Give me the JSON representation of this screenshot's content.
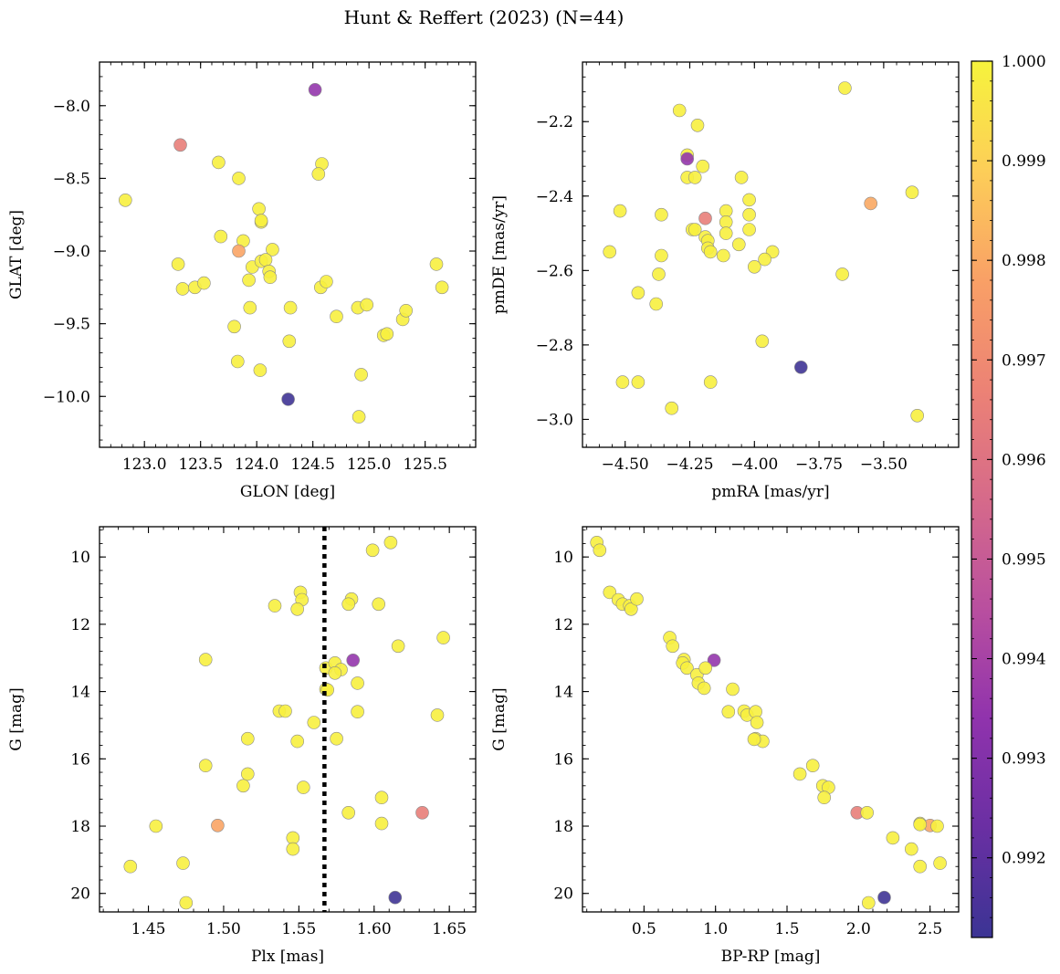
{
  "figure": {
    "title": "Hunt & Reffert (2023) (N=44)"
  },
  "colorbar": {
    "colormap": "plasma",
    "vmin": 0.9912,
    "vmax": 1.0,
    "ticks": [
      0.992,
      0.993,
      0.994,
      0.995,
      0.996,
      0.997,
      0.998,
      0.999,
      1.0
    ],
    "tick_labels": [
      "0.992",
      "0.993",
      "0.994",
      "0.995",
      "0.996",
      "0.997",
      "0.998",
      "0.999",
      "1.000"
    ]
  },
  "chart_data": [
    {
      "type": "scatter",
      "panel": "top-left",
      "xlabel": "GLON [deg]",
      "ylabel": "GLAT [deg]",
      "xlim": [
        122.6,
        125.95
      ],
      "ylim": [
        -10.35,
        -7.7
      ],
      "inverted_y": false,
      "xticks": [
        123.0,
        123.5,
        124.0,
        124.5,
        125.0,
        125.5
      ],
      "xtick_labels": [
        "123.0",
        "123.5",
        "124.0",
        "124.5",
        "125.0",
        "125.5"
      ],
      "yticks": [
        -8.0,
        -8.5,
        -9.0,
        -9.5,
        -10.0
      ],
      "ytick_labels": [
        "−8.0",
        "−8.5",
        "−9.0",
        "−9.5",
        "−10.0"
      ],
      "grid": false,
      "points": [
        [
          124.52,
          -7.89,
          0.9935
        ],
        [
          123.32,
          -8.27,
          0.9965
        ],
        [
          122.83,
          -8.65,
          0.9999
        ],
        [
          123.66,
          -8.39,
          0.9999
        ],
        [
          124.58,
          -8.4,
          0.9999
        ],
        [
          124.55,
          -8.47,
          0.9999
        ],
        [
          123.84,
          -8.5,
          0.9999
        ],
        [
          124.02,
          -8.71,
          0.9999
        ],
        [
          124.04,
          -8.8,
          0.9999
        ],
        [
          123.88,
          -8.93,
          0.9999
        ],
        [
          123.68,
          -8.9,
          0.9999
        ],
        [
          124.14,
          -8.99,
          0.9999
        ],
        [
          123.84,
          -9.0,
          0.9979
        ],
        [
          123.3,
          -9.09,
          0.9999
        ],
        [
          123.34,
          -9.26,
          0.9999
        ],
        [
          123.45,
          -9.25,
          0.9999
        ],
        [
          123.53,
          -9.22,
          0.9999
        ],
        [
          123.93,
          -9.2,
          0.9999
        ],
        [
          123.96,
          -9.11,
          0.9999
        ],
        [
          124.04,
          -9.07,
          0.9999
        ],
        [
          124.08,
          -9.06,
          0.9999
        ],
        [
          124.11,
          -9.14,
          0.9999
        ],
        [
          124.12,
          -9.18,
          0.9999
        ],
        [
          124.57,
          -9.25,
          0.9999
        ],
        [
          124.62,
          -9.21,
          0.9999
        ],
        [
          123.94,
          -9.39,
          0.9999
        ],
        [
          124.3,
          -9.39,
          0.9999
        ],
        [
          123.8,
          -9.52,
          0.9999
        ],
        [
          124.71,
          -9.45,
          0.9999
        ],
        [
          124.9,
          -9.39,
          0.9999
        ],
        [
          124.98,
          -9.37,
          0.9999
        ],
        [
          125.13,
          -9.58,
          0.9999
        ],
        [
          125.16,
          -9.57,
          0.9999
        ],
        [
          125.3,
          -9.47,
          0.9999
        ],
        [
          125.33,
          -9.41,
          0.9999
        ],
        [
          125.6,
          -9.09,
          0.9999
        ],
        [
          125.65,
          -9.25,
          0.9999
        ],
        [
          124.29,
          -9.62,
          0.9999
        ],
        [
          123.83,
          -9.76,
          0.9999
        ],
        [
          124.03,
          -9.82,
          0.9999
        ],
        [
          124.93,
          -9.85,
          0.9999
        ],
        [
          124.28,
          -10.02,
          0.9913
        ],
        [
          124.91,
          -10.14,
          0.9999
        ],
        [
          124.04,
          -8.79,
          0.9999
        ]
      ]
    },
    {
      "type": "scatter",
      "panel": "top-right",
      "xlabel": "pmRA [mas/yr]",
      "ylabel": "pmDE [mas/yr]",
      "xlim": [
        -4.665,
        -3.21
      ],
      "ylim": [
        -3.075,
        -2.04
      ],
      "inverted_y": false,
      "xticks": [
        -4.5,
        -4.25,
        -4.0,
        -3.75,
        -3.5
      ],
      "xtick_labels": [
        "−4.50",
        "−4.25",
        "−4.00",
        "−3.75",
        "−3.50"
      ],
      "yticks": [
        -2.2,
        -2.4,
        -2.6,
        -2.8,
        -3.0
      ],
      "ytick_labels": [
        "−2.2",
        "−2.4",
        "−2.6",
        "−2.8",
        "−3.0"
      ],
      "grid": false,
      "points": [
        [
          -3.65,
          -2.11,
          0.9999
        ],
        [
          -4.29,
          -2.17,
          0.9999
        ],
        [
          -4.22,
          -2.21,
          0.9999
        ],
        [
          -4.26,
          -2.29,
          0.9999
        ],
        [
          -4.26,
          -2.3,
          0.9935
        ],
        [
          -4.2,
          -2.32,
          0.9999
        ],
        [
          -4.26,
          -2.35,
          0.9999
        ],
        [
          -4.23,
          -2.35,
          0.9999
        ],
        [
          -4.05,
          -2.35,
          0.9999
        ],
        [
          -3.39,
          -2.39,
          0.9999
        ],
        [
          -4.02,
          -2.41,
          0.9999
        ],
        [
          -3.55,
          -2.42,
          0.998
        ],
        [
          -4.52,
          -2.44,
          0.9999
        ],
        [
          -4.36,
          -2.45,
          0.9999
        ],
        [
          -4.11,
          -2.44,
          0.9999
        ],
        [
          -4.02,
          -2.45,
          0.9999
        ],
        [
          -4.19,
          -2.46,
          0.9965
        ],
        [
          -4.11,
          -2.47,
          0.9999
        ],
        [
          -4.24,
          -2.49,
          0.9999
        ],
        [
          -4.23,
          -2.49,
          0.9999
        ],
        [
          -4.02,
          -2.49,
          0.9999
        ],
        [
          -4.11,
          -2.5,
          0.9999
        ],
        [
          -4.19,
          -2.51,
          0.9999
        ],
        [
          -4.18,
          -2.52,
          0.9999
        ],
        [
          -4.06,
          -2.53,
          0.9999
        ],
        [
          -4.18,
          -2.54,
          0.9999
        ],
        [
          -4.17,
          -2.55,
          0.9999
        ],
        [
          -4.56,
          -2.55,
          0.9999
        ],
        [
          -3.93,
          -2.55,
          0.9999
        ],
        [
          -4.36,
          -2.56,
          0.9999
        ],
        [
          -4.12,
          -2.56,
          0.9999
        ],
        [
          -3.96,
          -2.57,
          0.9999
        ],
        [
          -4.0,
          -2.59,
          0.9999
        ],
        [
          -4.37,
          -2.61,
          0.9999
        ],
        [
          -3.66,
          -2.61,
          0.9999
        ],
        [
          -4.45,
          -2.66,
          0.9999
        ],
        [
          -4.38,
          -2.69,
          0.9999
        ],
        [
          -3.97,
          -2.79,
          0.9999
        ],
        [
          -3.82,
          -2.86,
          0.9913
        ],
        [
          -4.51,
          -2.9,
          0.9999
        ],
        [
          -4.45,
          -2.9,
          0.9999
        ],
        [
          -4.17,
          -2.9,
          0.9999
        ],
        [
          -4.32,
          -2.97,
          0.9999
        ],
        [
          -3.37,
          -2.99,
          0.9999
        ]
      ]
    },
    {
      "type": "scatter",
      "panel": "bottom-left",
      "xlabel": "Plx [mas]",
      "ylabel": "G [mag]",
      "xlim": [
        1.4175,
        1.6675
      ],
      "ylim": [
        20.55,
        9.1
      ],
      "inverted_y": true,
      "vline": {
        "x": 1.567,
        "style": "dotted"
      },
      "xticks": [
        1.45,
        1.5,
        1.55,
        1.6,
        1.65
      ],
      "xtick_labels": [
        "1.45",
        "1.50",
        "1.55",
        "1.60",
        "1.65"
      ],
      "yticks": [
        10,
        12,
        14,
        16,
        18,
        20
      ],
      "ytick_labels": [
        "10",
        "12",
        "14",
        "16",
        "18",
        "20"
      ],
      "grid": false,
      "points": [
        [
          1.611,
          9.57,
          0.9999
        ],
        [
          1.599,
          9.8,
          0.9999
        ],
        [
          1.551,
          11.05,
          0.9999
        ],
        [
          1.552,
          11.27,
          0.9999
        ],
        [
          1.534,
          11.45,
          0.9999
        ],
        [
          1.549,
          11.55,
          0.9999
        ],
        [
          1.585,
          11.25,
          0.9999
        ],
        [
          1.583,
          11.4,
          0.9999
        ],
        [
          1.603,
          11.4,
          0.9999
        ],
        [
          1.646,
          12.4,
          0.9999
        ],
        [
          1.616,
          12.65,
          0.9999
        ],
        [
          1.488,
          13.05,
          0.9999
        ],
        [
          1.586,
          13.07,
          0.9935
        ],
        [
          1.568,
          13.3,
          0.9999
        ],
        [
          1.574,
          13.15,
          0.9999
        ],
        [
          1.578,
          13.35,
          0.9999
        ],
        [
          1.574,
          13.45,
          0.9999
        ],
        [
          1.589,
          13.75,
          0.9999
        ],
        [
          1.568,
          13.93,
          0.9999
        ],
        [
          1.569,
          13.95,
          0.9999
        ],
        [
          1.537,
          14.58,
          0.9999
        ],
        [
          1.541,
          14.58,
          0.9999
        ],
        [
          1.589,
          14.6,
          0.9999
        ],
        [
          1.642,
          14.7,
          0.9999
        ],
        [
          1.56,
          14.92,
          0.9999
        ],
        [
          1.516,
          15.4,
          0.9999
        ],
        [
          1.575,
          15.4,
          0.9999
        ],
        [
          1.549,
          15.48,
          0.9999
        ],
        [
          1.488,
          16.2,
          0.9999
        ],
        [
          1.516,
          16.45,
          0.9999
        ],
        [
          1.513,
          16.8,
          0.9999
        ],
        [
          1.553,
          16.85,
          0.9999
        ],
        [
          1.605,
          17.15,
          0.9999
        ],
        [
          1.583,
          17.6,
          0.9999
        ],
        [
          1.632,
          17.6,
          0.9965
        ],
        [
          1.455,
          18.0,
          0.9999
        ],
        [
          1.496,
          17.98,
          0.9979
        ],
        [
          1.605,
          17.92,
          0.9999
        ],
        [
          1.546,
          18.35,
          0.9999
        ],
        [
          1.546,
          18.68,
          0.9999
        ],
        [
          1.473,
          19.1,
          0.9999
        ],
        [
          1.438,
          19.2,
          0.9999
        ],
        [
          1.614,
          20.12,
          0.9913
        ],
        [
          1.475,
          20.28,
          0.9999
        ]
      ]
    },
    {
      "type": "scatter",
      "panel": "bottom-right",
      "xlabel": "BP-RP [mag]",
      "ylabel": "G [mag]",
      "xlim": [
        0.07,
        2.7
      ],
      "ylim": [
        20.55,
        9.1
      ],
      "inverted_y": true,
      "xticks": [
        0.5,
        1.0,
        1.5,
        2.0,
        2.5
      ],
      "xtick_labels": [
        "0.5",
        "1.0",
        "1.5",
        "2.0",
        "2.5"
      ],
      "yticks": [
        10,
        12,
        14,
        16,
        18,
        20
      ],
      "ytick_labels": [
        "10",
        "12",
        "14",
        "16",
        "18",
        "20"
      ],
      "grid": false,
      "points": [
        [
          0.17,
          9.57,
          0.9999
        ],
        [
          0.19,
          9.8,
          0.9999
        ],
        [
          0.26,
          11.05,
          0.9999
        ],
        [
          0.32,
          11.27,
          0.9999
        ],
        [
          0.35,
          11.4,
          0.9999
        ],
        [
          0.4,
          11.45,
          0.9999
        ],
        [
          0.41,
          11.55,
          0.9999
        ],
        [
          0.45,
          11.25,
          0.9999
        ],
        [
          0.68,
          12.4,
          0.9999
        ],
        [
          0.7,
          12.65,
          0.9999
        ],
        [
          0.78,
          13.05,
          0.9999
        ],
        [
          0.77,
          13.15,
          0.9999
        ],
        [
          0.8,
          13.3,
          0.9999
        ],
        [
          0.99,
          13.07,
          0.9935
        ],
        [
          0.87,
          13.5,
          0.9999
        ],
        [
          0.93,
          13.3,
          0.9999
        ],
        [
          0.88,
          13.75,
          0.9999
        ],
        [
          0.92,
          13.9,
          0.9999
        ],
        [
          1.12,
          13.93,
          0.9999
        ],
        [
          1.09,
          14.6,
          0.9999
        ],
        [
          1.2,
          14.58,
          0.9999
        ],
        [
          1.22,
          14.7,
          0.9999
        ],
        [
          1.28,
          14.6,
          0.9999
        ],
        [
          1.29,
          14.92,
          0.9999
        ],
        [
          1.28,
          15.4,
          0.9999
        ],
        [
          1.33,
          15.48,
          0.9999
        ],
        [
          1.59,
          16.45,
          0.9999
        ],
        [
          1.68,
          16.2,
          0.9999
        ],
        [
          1.75,
          16.8,
          0.9999
        ],
        [
          1.79,
          16.85,
          0.9999
        ],
        [
          1.76,
          17.15,
          0.9999
        ],
        [
          1.99,
          17.6,
          0.9965
        ],
        [
          2.06,
          17.6,
          0.9999
        ],
        [
          2.24,
          18.35,
          0.9999
        ],
        [
          2.37,
          18.68,
          0.9999
        ],
        [
          2.43,
          17.92,
          0.9999
        ],
        [
          2.5,
          17.98,
          0.9979
        ],
        [
          2.55,
          18.0,
          0.9999
        ],
        [
          2.43,
          19.2,
          0.9999
        ],
        [
          2.57,
          19.1,
          0.9999
        ],
        [
          2.18,
          20.12,
          0.9913
        ],
        [
          2.07,
          20.28,
          0.9999
        ],
        [
          2.43,
          17.95,
          0.9999
        ],
        [
          1.27,
          15.42,
          0.9999
        ]
      ]
    }
  ]
}
